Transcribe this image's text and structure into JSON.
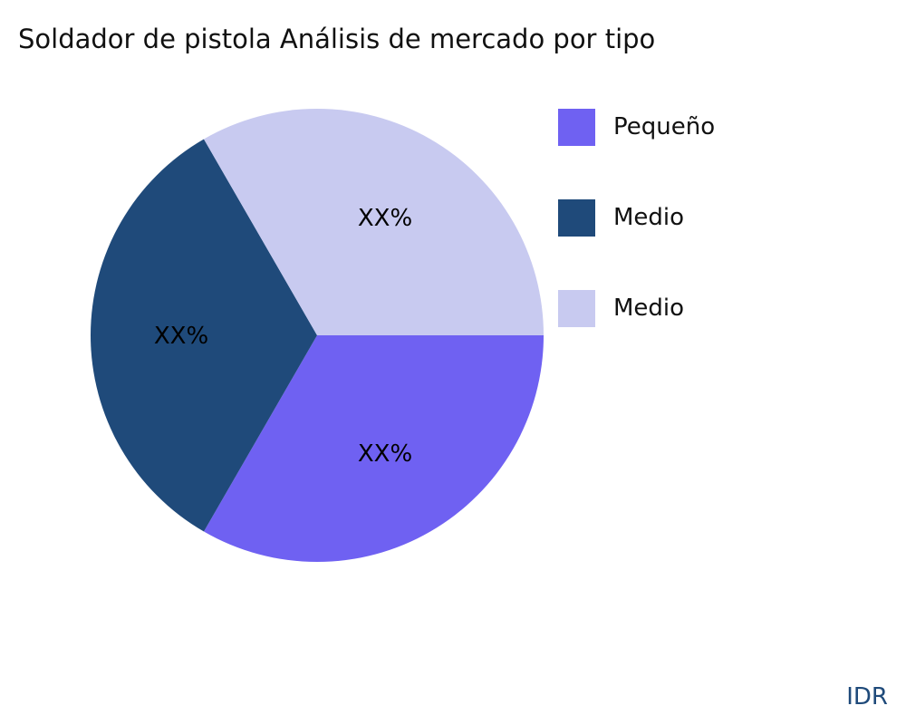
{
  "chart_data": {
    "type": "pie",
    "title": "Soldador de pistola Análisis de mercado por tipo",
    "slices": [
      {
        "name": "Pequeño",
        "value": 33.3,
        "label": "XX%",
        "color": "#6f61f2"
      },
      {
        "name": "Medio",
        "value": 33.3,
        "label": "XX%",
        "color": "#1f4a7a"
      },
      {
        "name": "Medio",
        "value": 33.3,
        "label": "XX%",
        "color": "#c8caf0"
      }
    ],
    "legend_placement": "right"
  },
  "watermark": "IDR"
}
